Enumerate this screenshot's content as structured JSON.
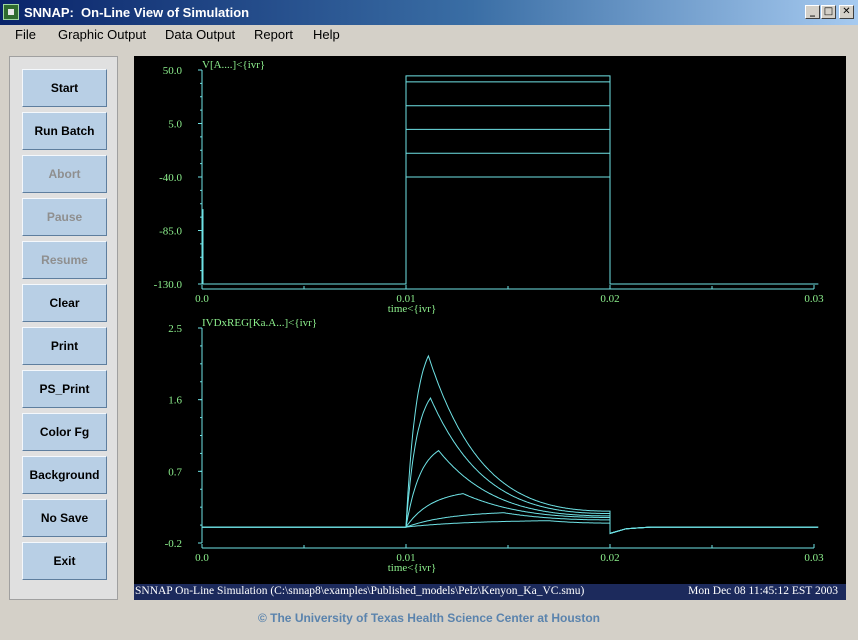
{
  "window": {
    "title": "SNNAP:  On-Line View of Simulation",
    "minimize_glyph": "_",
    "maximize_glyph": "□",
    "close_glyph": "✕"
  },
  "menu": [
    "File",
    "Graphic Output",
    "Data Output",
    "Report",
    "Help"
  ],
  "buttons": [
    {
      "label": "Start",
      "enabled": true
    },
    {
      "label": "Run Batch",
      "enabled": true
    },
    {
      "label": "Abort",
      "enabled": false
    },
    {
      "label": "Pause",
      "enabled": false
    },
    {
      "label": "Resume",
      "enabled": false
    },
    {
      "label": "Clear",
      "enabled": true
    },
    {
      "label": "Print",
      "enabled": true
    },
    {
      "label": "PS_Print",
      "enabled": true
    },
    {
      "label": "Color Fg",
      "enabled": true
    },
    {
      "label": "Background",
      "enabled": true
    },
    {
      "label": "No Save",
      "enabled": true
    },
    {
      "label": "Exit",
      "enabled": true
    }
  ],
  "colors": {
    "trace": "#6fe3e6",
    "axis_label": "#8df08d",
    "plot_bg": "#000000"
  },
  "chart_data": [
    {
      "type": "line",
      "title": "V[A....]<{ivr}",
      "xlabel": "time<{ivr}",
      "ylabel": "",
      "xlim": [
        0.0,
        0.03
      ],
      "ylim": [
        -130.0,
        50.0
      ],
      "x_ticks": [
        "0.0",
        "0.01",
        "0.02",
        "0.03"
      ],
      "y_ticks": [
        "50.0",
        "5.0",
        "-40.0",
        "-85.0",
        "-130.0"
      ],
      "series": [
        {
          "x": [
            0.0,
            0.01,
            0.01,
            0.02,
            0.02,
            0.0302
          ],
          "y": [
            -130,
            -130,
            -40,
            -40,
            -130,
            -130
          ]
        },
        {
          "x": [
            0.0,
            0.01,
            0.01,
            0.02,
            0.02,
            0.0302
          ],
          "y": [
            -130,
            -130,
            -20,
            -20,
            -130,
            -130
          ]
        },
        {
          "x": [
            0.0,
            0.01,
            0.01,
            0.02,
            0.02,
            0.0302
          ],
          "y": [
            -130,
            -130,
            0,
            0,
            -130,
            -130
          ]
        },
        {
          "x": [
            0.0,
            0.01,
            0.01,
            0.02,
            0.02,
            0.0302
          ],
          "y": [
            -130,
            -130,
            20,
            20,
            -130,
            -130
          ]
        },
        {
          "x": [
            0.0,
            0.01,
            0.01,
            0.02,
            0.02,
            0.0302
          ],
          "y": [
            -130,
            -130,
            40,
            40,
            -130,
            -130
          ]
        },
        {
          "x": [
            0.0,
            0.01,
            0.01,
            0.02,
            0.02,
            0.0302
          ],
          "y": [
            -130,
            -130,
            45,
            45,
            -130,
            -130
          ]
        },
        {
          "x": [
            5e-05,
            5e-05
          ],
          "y": [
            -130,
            -67
          ]
        }
      ]
    },
    {
      "type": "line",
      "title": "IVDxREG[Ka.A...]<{ivr}",
      "xlabel": "time<{ivr}",
      "ylabel": "",
      "xlim": [
        0.0,
        0.03
      ],
      "ylim": [
        -0.2,
        2.5
      ],
      "x_ticks": [
        "0.0",
        "0.01",
        "0.02",
        "0.03"
      ],
      "y_ticks": [
        "2.5",
        "1.6",
        "0.7",
        "-0.2"
      ],
      "series": [
        {
          "peak": 2.15,
          "t_peak": 0.0011,
          "end_value": 0.2
        },
        {
          "peak": 1.62,
          "t_peak": 0.0012,
          "end_value": 0.17
        },
        {
          "peak": 0.96,
          "t_peak": 0.0016,
          "end_value": 0.14
        },
        {
          "peak": 0.42,
          "t_peak": 0.0028,
          "end_value": 0.12
        },
        {
          "peak": 0.18,
          "t_peak": 0.0048,
          "end_value": 0.09
        },
        {
          "peak": 0.08,
          "t_peak": 0.007,
          "end_value": 0.05
        }
      ],
      "baseline": 0.0,
      "offset_dip": -0.08
    }
  ],
  "status": {
    "left": "SNNAP On-Line Simulation (C:\\snnap8\\examples\\Published_models\\Pelz\\Kenyon_Ka_VC.smu)",
    "right": "Mon Dec 08 11:45:12 EST 2003"
  },
  "footer": "© The University of Texas Health Science Center at Houston"
}
